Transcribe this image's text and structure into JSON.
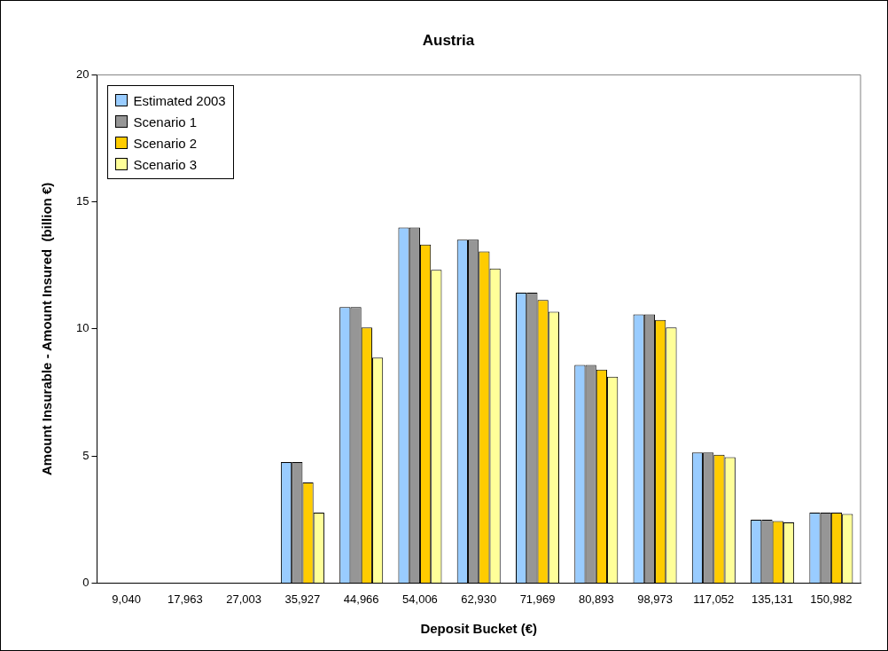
{
  "chart_data": {
    "type": "bar",
    "title": "Austria",
    "xlabel": "Deposit Bucket (€)",
    "ylabel": "Amount Insurable - Amount Insured  (billion €)",
    "categories": [
      "9,040",
      "17,963",
      "27,003",
      "35,927",
      "44,966",
      "54,006",
      "62,930",
      "71,969",
      "80,893",
      "98,973",
      "117,052",
      "135,131",
      "150,982"
    ],
    "series": [
      {
        "name": "Estimated 2003",
        "color": "#99ccff",
        "values": [
          0,
          0,
          0,
          4.76,
          10.86,
          13.99,
          13.51,
          11.43,
          8.58,
          10.57,
          5.14,
          2.49,
          2.77
        ]
      },
      {
        "name": "Scenario 1",
        "color": "#969696",
        "values": [
          0,
          0,
          0,
          4.76,
          10.86,
          13.99,
          13.51,
          11.43,
          8.58,
          10.57,
          5.14,
          2.49,
          2.77
        ]
      },
      {
        "name": "Scenario 2",
        "color": "#ffcc00",
        "values": [
          0,
          0,
          0,
          3.96,
          10.06,
          13.32,
          13.05,
          11.14,
          8.4,
          10.35,
          5.05,
          2.44,
          2.77
        ]
      },
      {
        "name": "Scenario 3",
        "color": "#ffff99",
        "values": [
          0,
          0,
          0,
          2.77,
          8.87,
          12.33,
          12.38,
          10.68,
          8.12,
          10.06,
          4.95,
          2.39,
          2.72
        ]
      }
    ],
    "ylim": [
      0,
      20
    ],
    "yticks": [
      0,
      5,
      10,
      15,
      20
    ],
    "grid": false,
    "legend": "top left"
  }
}
